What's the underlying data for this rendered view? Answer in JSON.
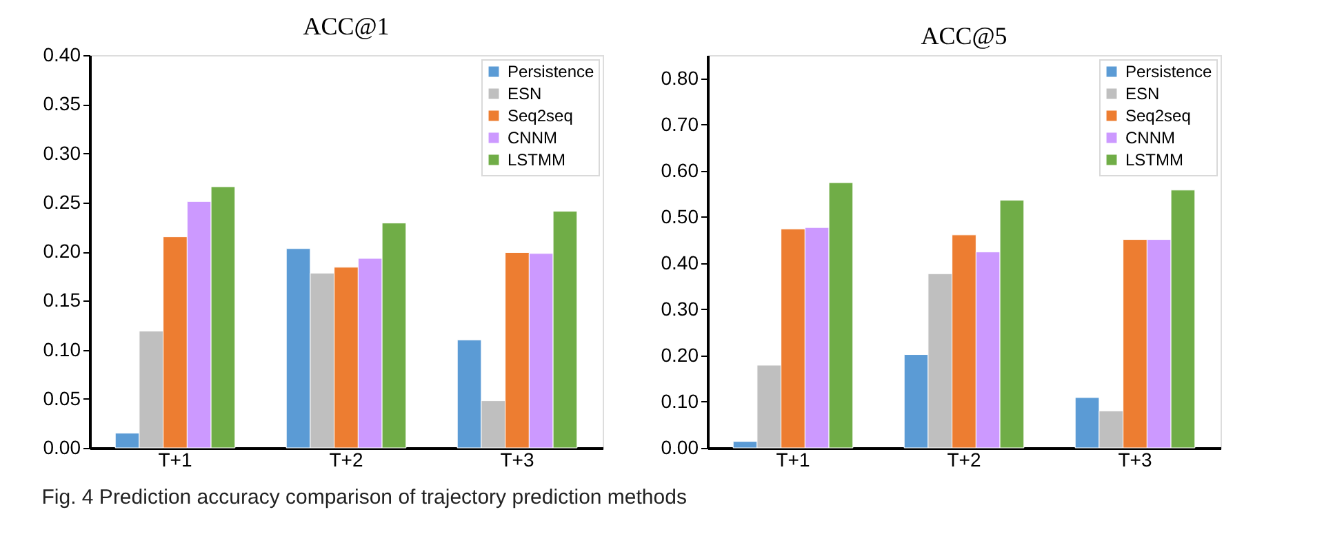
{
  "chart_data": [
    {
      "type": "bar",
      "title": "ACC@1",
      "categories": [
        "T+1",
        "T+2",
        "T+3"
      ],
      "legend": "top right",
      "grid": false,
      "ylim": [
        0,
        0.4
      ],
      "yticks": [
        {
          "value": 0,
          "label": "0.00"
        },
        {
          "value": 0.05,
          "label": "0.05"
        },
        {
          "value": 0.1,
          "label": "0.10"
        },
        {
          "value": 0.15,
          "label": "0.15"
        },
        {
          "value": 0.2,
          "label": "0.20"
        },
        {
          "value": 0.25,
          "label": "0.25"
        },
        {
          "value": 0.3,
          "label": "0.30"
        },
        {
          "value": 0.35,
          "label": "0.35"
        },
        {
          "value": 0.4,
          "label": "0.40"
        }
      ],
      "series": [
        {
          "name": "Persistence",
          "color": "#5b9bd5",
          "values": [
            0.015,
            0.203,
            0.11
          ]
        },
        {
          "name": "ESN",
          "color": "#bfbfbf",
          "values": [
            0.119,
            0.178,
            0.048
          ]
        },
        {
          "name": "Seq2seq",
          "color": "#ed7d31",
          "values": [
            0.215,
            0.184,
            0.199
          ]
        },
        {
          "name": "CNNM",
          "color": "#cc99ff",
          "values": [
            0.251,
            0.193,
            0.198
          ]
        },
        {
          "name": "LSTMM",
          "color": "#70ad47",
          "values": [
            0.266,
            0.229,
            0.241
          ]
        }
      ],
      "annotations": [
        "Fig. 4 Prediction accuracy comparison of trajectory prediction methods"
      ]
    },
    {
      "type": "bar",
      "title": "ACC@5",
      "categories": [
        "T+1",
        "T+2",
        "T+3"
      ],
      "legend": "top right",
      "grid": false,
      "ylim": [
        0,
        0.85
      ],
      "yticks": [
        {
          "value": 0,
          "label": "0.00"
        },
        {
          "value": 0.1,
          "label": "0.10"
        },
        {
          "value": 0.2,
          "label": "0.20"
        },
        {
          "value": 0.3,
          "label": "0.30"
        },
        {
          "value": 0.4,
          "label": "0.40"
        },
        {
          "value": 0.5,
          "label": "0.50"
        },
        {
          "value": 0.6,
          "label": "0.60"
        },
        {
          "value": 0.7,
          "label": "0.70"
        },
        {
          "value": 0.8,
          "label": "0.80"
        }
      ],
      "series": [
        {
          "name": "Persistence",
          "color": "#5b9bd5",
          "values": [
            0.014,
            0.202,
            0.109
          ]
        },
        {
          "name": "ESN",
          "color": "#bfbfbf",
          "values": [
            0.179,
            0.377,
            0.08
          ]
        },
        {
          "name": "Seq2seq",
          "color": "#ed7d31",
          "values": [
            0.474,
            0.461,
            0.451
          ]
        },
        {
          "name": "CNNM",
          "color": "#cc99ff",
          "values": [
            0.477,
            0.424,
            0.451
          ]
        },
        {
          "name": "LSTMM",
          "color": "#70ad47",
          "values": [
            0.574,
            0.536,
            0.558
          ]
        }
      ]
    }
  ]
}
